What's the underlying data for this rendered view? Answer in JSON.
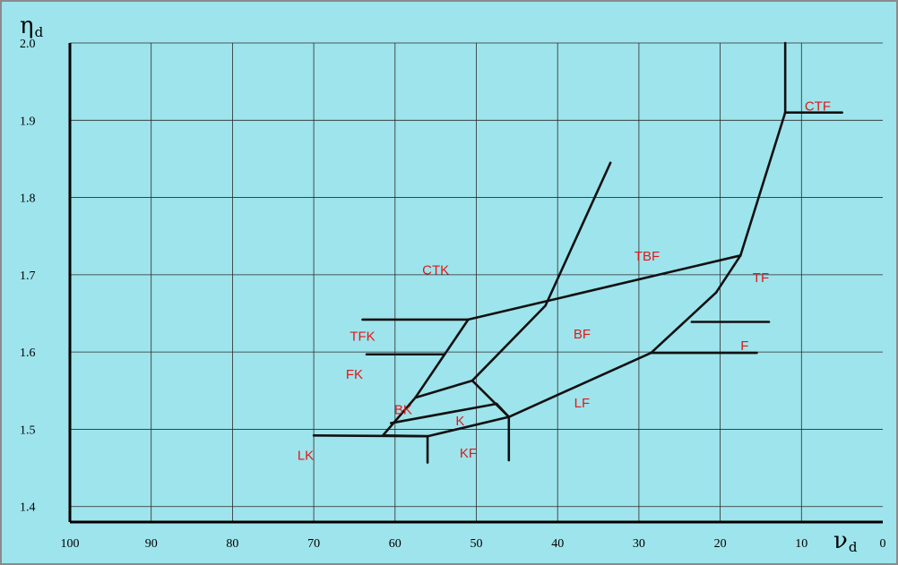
{
  "chart_data": {
    "type": "diagram",
    "title": "",
    "y_axis_label": "η",
    "y_axis_label_sub": "d",
    "x_axis_label": "ν",
    "x_axis_label_sub": "d",
    "y_ticks": [
      "2.0",
      "1.9",
      "1.8",
      "1.7",
      "1.6",
      "1.5",
      "1.4"
    ],
    "x_ticks": [
      "100",
      "90",
      "80",
      "70",
      "60",
      "50",
      "40",
      "30",
      "20",
      "10",
      "0"
    ],
    "xlim": [
      100,
      0
    ],
    "ylim": [
      1.38,
      2.0
    ],
    "region_labels": [
      {
        "text": "CTF",
        "nu": 8.0,
        "n": 1.917
      },
      {
        "text": "TBF",
        "nu": 29.0,
        "n": 1.723
      },
      {
        "text": "TF",
        "nu": 15.0,
        "n": 1.695
      },
      {
        "text": "CTK",
        "nu": 55.0,
        "n": 1.705
      },
      {
        "text": "TFK",
        "nu": 64.0,
        "n": 1.619
      },
      {
        "text": "BF",
        "nu": 37.0,
        "n": 1.622
      },
      {
        "text": "F",
        "nu": 17.0,
        "n": 1.607
      },
      {
        "text": "FK",
        "nu": 65.0,
        "n": 1.57
      },
      {
        "text": "BK",
        "nu": 59.0,
        "n": 1.524
      },
      {
        "text": "K",
        "nu": 52.0,
        "n": 1.51
      },
      {
        "text": "LF",
        "nu": 37.0,
        "n": 1.533
      },
      {
        "text": "LK",
        "nu": 71.0,
        "n": 1.465
      },
      {
        "text": "KF",
        "nu": 51.0,
        "n": 1.468
      }
    ],
    "boundaries": [
      [
        [
          12.0,
          2.0
        ],
        [
          12.0,
          1.91
        ]
      ],
      [
        [
          12.0,
          1.91
        ],
        [
          5.0,
          1.91
        ]
      ],
      [
        [
          12.0,
          1.91
        ],
        [
          17.5,
          1.725
        ]
      ],
      [
        [
          17.5,
          1.725
        ],
        [
          20.5,
          1.677
        ]
      ],
      [
        [
          20.5,
          1.677
        ],
        [
          28.5,
          1.599
        ]
      ],
      [
        [
          28.5,
          1.599
        ],
        [
          46.0,
          1.516
        ]
      ],
      [
        [
          46.0,
          1.516
        ],
        [
          50.5,
          1.563
        ]
      ],
      [
        [
          50.5,
          1.563
        ],
        [
          57.5,
          1.541
        ]
      ],
      [
        [
          57.5,
          1.541
        ],
        [
          61.5,
          1.492
        ]
      ],
      [
        [
          61.5,
          1.492
        ],
        [
          56.0,
          1.491
        ]
      ],
      [
        [
          56.0,
          1.491
        ],
        [
          70.0,
          1.492
        ]
      ],
      [
        [
          56.0,
          1.491
        ],
        [
          56.0,
          1.457
        ]
      ],
      [
        [
          56.0,
          1.491
        ],
        [
          46.0,
          1.516
        ]
      ],
      [
        [
          46.0,
          1.516
        ],
        [
          46.0,
          1.46
        ]
      ],
      [
        [
          46.0,
          1.516
        ],
        [
          47.5,
          1.533
        ]
      ],
      [
        [
          47.5,
          1.533
        ],
        [
          60.5,
          1.508
        ]
      ],
      [
        [
          57.5,
          1.541
        ],
        [
          51.0,
          1.642
        ]
      ],
      [
        [
          51.0,
          1.642
        ],
        [
          64.0,
          1.642
        ]
      ],
      [
        [
          51.0,
          1.642
        ],
        [
          17.5,
          1.725
        ]
      ],
      [
        [
          50.5,
          1.563
        ],
        [
          41.5,
          1.66
        ]
      ],
      [
        [
          41.5,
          1.66
        ],
        [
          33.5,
          1.845
        ]
      ],
      [
        [
          54.0,
          1.597
        ],
        [
          63.5,
          1.597
        ]
      ],
      [
        [
          28.5,
          1.599
        ],
        [
          15.5,
          1.599
        ]
      ],
      [
        [
          23.5,
          1.639
        ],
        [
          14.0,
          1.639
        ]
      ]
    ]
  }
}
